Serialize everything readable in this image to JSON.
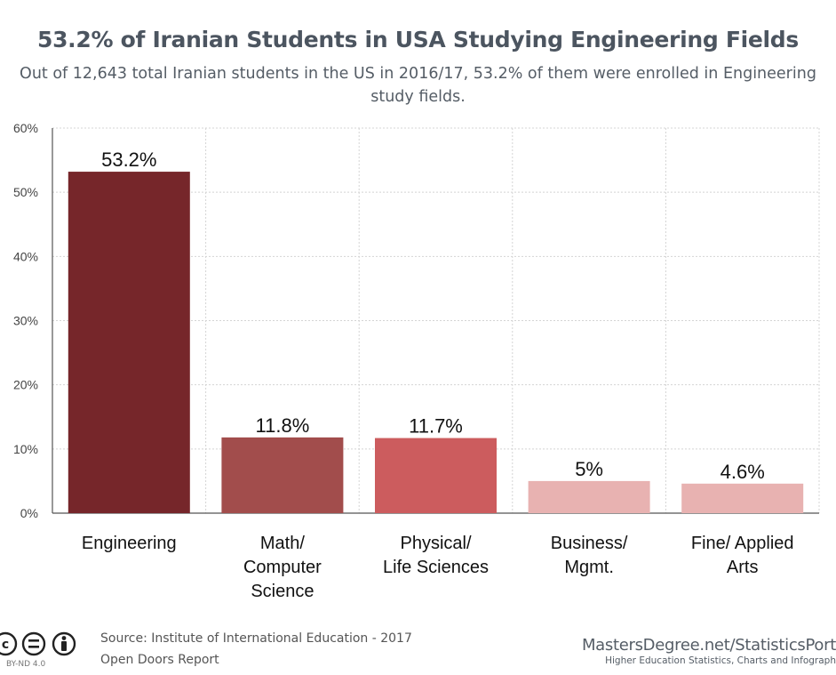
{
  "header": {
    "title": "53.2% of Iranian Students in USA Studying Engineering Fields",
    "subtitle": "Out of 12,643 total Iranian students in the US in 2016/17, 53.2% of them were enrolled in Engineering study fields."
  },
  "chart_data": {
    "type": "bar",
    "title": "53.2% of Iranian Students in USA Studying Engineering Fields",
    "subtitle": "Out of 12,643 total Iranian students in the US in 2016/17, 53.2% of them were enrolled in Engineering study fields.",
    "categories": [
      "Engineering",
      "Math/ Computer Science",
      "Physical/ Life Sciences",
      "Business/ Mgmt.",
      "Fine/ Applied Arts"
    ],
    "category_lines": [
      [
        "Engineering"
      ],
      [
        "Math/",
        "Computer",
        "Science"
      ],
      [
        "Physical/",
        "Life Sciences"
      ],
      [
        "Business/",
        "Mgmt."
      ],
      [
        "Fine/ Applied",
        "Arts"
      ]
    ],
    "values": [
      53.2,
      11.8,
      11.7,
      5,
      4.6
    ],
    "data_labels": [
      "53.2%",
      "11.8%",
      "11.7%",
      "5%",
      "4.6%"
    ],
    "colors": [
      "#76262a",
      "#a24d4c",
      "#cc5c5e",
      "#e8b2b1",
      "#e8b2b1"
    ],
    "ylim": [
      0,
      60
    ],
    "yticks": [
      0,
      10,
      20,
      30,
      40,
      50,
      60
    ],
    "ytick_labels": [
      "0%",
      "10%",
      "20%",
      "30%",
      "40%",
      "50%",
      "60%"
    ],
    "xlabel": "",
    "ylabel": "",
    "grid": true
  },
  "footer": {
    "source_line1": "Source: Institute of International Education - 2017",
    "source_line2": "Open Doors Report",
    "license": "BY-ND 4.0",
    "brand_main": "MastersDegree.net/StatisticsPort",
    "brand_sub": "Higher Education Statistics, Charts and Infograph"
  }
}
